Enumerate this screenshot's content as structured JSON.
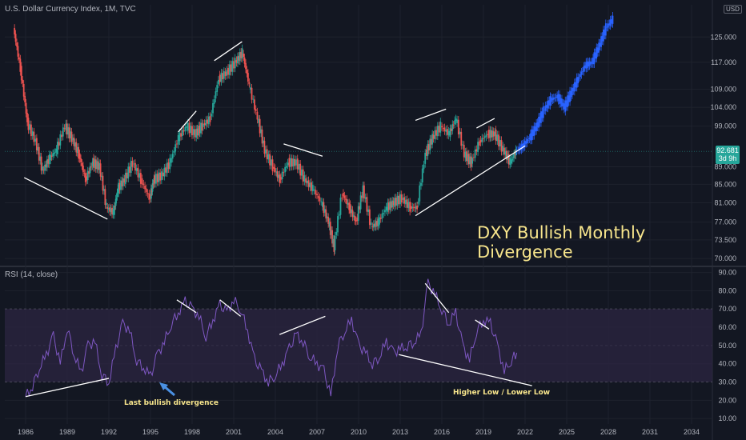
{
  "header": {
    "symbol_label": "U.S. Dollar Currency Index, 1M, TVC",
    "currency": "USD",
    "rsi_label": "RSI (14, close)"
  },
  "annotations": {
    "title": "DXY Bullish Monthly Divergence",
    "last_divergence": "Last bullish divergence",
    "higher_low": "Higher Low / Lower Low"
  },
  "price_tag": {
    "value": "92.681",
    "countdown": "3d 9h"
  },
  "colors": {
    "background": "#131722",
    "up_candle": "#26a69a",
    "down_candle": "#ef5350",
    "projection": "#2962ff",
    "rsi_line": "#7e57c2",
    "rsi_band": "#2a2440",
    "trendline": "#ffffff",
    "annotation_text": "#f7e58c",
    "grid": "#1e222d"
  },
  "chart_data": [
    {
      "type": "line",
      "title": "U.S. Dollar Currency Index, 1M, TVC",
      "x_ticks": [
        "1986",
        "1989",
        "1992",
        "1995",
        "1998",
        "2001",
        "2004",
        "2007",
        "2010",
        "2013",
        "2016",
        "2019",
        "2022",
        "2025",
        "2028",
        "2031",
        "2034"
      ],
      "y_ticks": [
        70.0,
        73.5,
        77.0,
        81.0,
        85.0,
        89.0,
        92.681,
        99.0,
        104.0,
        109.0,
        117.0,
        125.0
      ],
      "y_tick_labels": [
        "70.000",
        "73.500",
        "77.000",
        "81.000",
        "85.000",
        "89.000",
        "92.681",
        "99.000",
        "104.000",
        "109.000",
        "117.000",
        "125.000"
      ],
      "ylim": [
        69,
        136
      ],
      "xlim": [
        1984.5,
        2035.5
      ],
      "log_scale": true,
      "series": [
        {
          "x": [
            1985.2,
            1985.7,
            1986.2,
            1986.8,
            1987.3,
            1987.8,
            1988.3,
            1988.9,
            1989.4,
            1989.9,
            1990.4,
            1990.9,
            1991.4,
            1991.9,
            1992.4,
            1992.7,
            1993.2,
            1993.8,
            1994.4,
            1995.0,
            1995.3,
            1995.9,
            1996.5,
            1997.1,
            1997.7,
            1998.3,
            1998.8,
            1999.4,
            2000.0,
            2000.6,
            2001.2,
            2001.7,
            2002.2,
            2002.8,
            2003.3,
            2003.9,
            2004.4,
            2005.0,
            2005.6,
            2006.2,
            2006.8,
            2007.4,
            2007.9,
            2008.3,
            2008.9,
            2009.4,
            2009.9,
            2010.4,
            2011.0,
            2011.5,
            2012.1,
            2012.6,
            2013.2,
            2013.8,
            2014.3,
            2014.9,
            2015.4,
            2016.0,
            2016.6,
            2017.1,
            2017.7,
            2018.2,
            2018.8,
            2019.4,
            2019.9,
            2020.5,
            2021.0,
            2021.4
          ],
          "values": [
            128,
            115,
            100,
            95,
            88,
            91,
            93,
            99,
            96,
            92,
            86,
            90,
            89,
            80,
            79,
            84,
            86,
            90,
            86,
            82,
            86,
            87,
            90,
            96,
            99,
            97,
            99,
            101,
            112,
            114,
            117,
            120,
            110,
            101,
            93,
            89,
            86,
            90,
            90,
            86,
            84,
            81,
            77,
            72,
            83,
            80,
            77,
            84,
            76,
            77,
            80,
            81,
            82,
            80,
            80,
            92,
            96,
            99,
            97,
            101,
            92,
            90,
            95,
            97,
            97,
            93,
            90,
            92.681
          ]
        },
        {
          "name": "",
          "x": [
            2021.4,
            2021.9,
            2022.4,
            2022.9,
            2023.4,
            2023.9,
            2024.4,
            2024.9,
            2025.4,
            2025.9,
            2026.4,
            2026.9,
            2027.4,
            2027.9,
            2028.4
          ],
          "values": [
            92.681,
            94,
            96,
            99,
            103,
            106,
            107,
            104,
            108,
            112,
            116,
            117,
            122,
            128,
            131
          ]
        }
      ],
      "trendlines_price": [
        {
          "x1": 1985.9,
          "y1": 86.5,
          "x2": 1991.9,
          "y2": 77.6
        },
        {
          "x1": 1997.0,
          "y1": 97.5,
          "x2": 1998.3,
          "y2": 103.0
        },
        {
          "x1": 1999.6,
          "y1": 117.5,
          "x2": 2001.6,
          "y2": 123.5
        },
        {
          "x1": 2004.6,
          "y1": 94.5,
          "x2": 2007.4,
          "y2": 91.5
        },
        {
          "x1": 2014.1,
          "y1": 78.3,
          "x2": 2022.0,
          "y2": 94.0
        },
        {
          "x1": 2014.1,
          "y1": 100.5,
          "x2": 2016.3,
          "y2": 103.5
        },
        {
          "x1": 2018.5,
          "y1": 98.5,
          "x2": 2019.8,
          "y2": 101.0
        }
      ]
    },
    {
      "type": "line",
      "title": "RSI (14, close)",
      "x_ticks": [
        "1986",
        "1989",
        "1992",
        "1995",
        "1998",
        "2001",
        "2004",
        "2007",
        "2010",
        "2013",
        "2016",
        "2019",
        "2022",
        "2025",
        "2028",
        "2031",
        "2034"
      ],
      "y_ticks": [
        10,
        20,
        30,
        40,
        50,
        60,
        70,
        80,
        90
      ],
      "y_tick_labels": [
        "10.00",
        "20.00",
        "30.00",
        "40.00",
        "50.00",
        "60.00",
        "70.00",
        "80.00",
        "90.00"
      ],
      "ylim": [
        7,
        92
      ],
      "band": [
        30,
        70
      ],
      "series": [
        {
          "name": "",
          "x": [
            1986.0,
            1986.5,
            1987.0,
            1987.5,
            1988.0,
            1988.5,
            1989.0,
            1989.5,
            1990.0,
            1990.5,
            1991.0,
            1991.5,
            1992.0,
            1992.5,
            1993.0,
            1993.5,
            1994.0,
            1994.5,
            1995.0,
            1995.5,
            1996.0,
            1996.5,
            1997.0,
            1997.5,
            1998.0,
            1998.5,
            1999.0,
            1999.5,
            2000.0,
            2000.5,
            2001.0,
            2001.5,
            2002.0,
            2002.5,
            2003.0,
            2003.5,
            2004.0,
            2004.5,
            2005.0,
            2005.5,
            2006.0,
            2006.5,
            2007.0,
            2007.5,
            2008.0,
            2008.5,
            2009.0,
            2009.5,
            2010.0,
            2010.5,
            2011.0,
            2011.5,
            2012.0,
            2012.5,
            2013.0,
            2013.5,
            2014.0,
            2014.5,
            2015.0,
            2015.5,
            2016.0,
            2016.5,
            2017.0,
            2017.5,
            2018.0,
            2018.5,
            2019.0,
            2019.5,
            2020.0,
            2020.5,
            2021.0,
            2021.4
          ],
          "values": [
            22,
            28,
            38,
            45,
            55,
            40,
            60,
            45,
            35,
            50,
            52,
            34,
            30,
            48,
            62,
            58,
            42,
            38,
            33,
            45,
            52,
            62,
            68,
            74,
            70,
            66,
            55,
            64,
            72,
            68,
            75,
            70,
            58,
            42,
            36,
            30,
            34,
            40,
            48,
            56,
            52,
            44,
            40,
            36,
            22,
            50,
            58,
            64,
            50,
            46,
            40,
            44,
            52,
            46,
            48,
            50,
            52,
            56,
            84,
            78,
            70,
            62,
            68,
            50,
            42,
            58,
            64,
            62,
            50,
            36,
            42,
            46
          ]
        }
      ],
      "trendlines_rsi": [
        {
          "x1": 1986.0,
          "y1": 22,
          "x2": 1992.0,
          "y2": 32
        },
        {
          "x1": 1996.9,
          "y1": 75,
          "x2": 1998.3,
          "y2": 68
        },
        {
          "x1": 2000.0,
          "y1": 75,
          "x2": 2001.5,
          "y2": 66
        },
        {
          "x1": 2004.3,
          "y1": 56,
          "x2": 2007.6,
          "y2": 66
        },
        {
          "x1": 2014.8,
          "y1": 84,
          "x2": 2016.5,
          "y2": 68
        },
        {
          "x1": 2018.4,
          "y1": 64,
          "x2": 2019.4,
          "y2": 59
        },
        {
          "x1": 2012.9,
          "y1": 45,
          "x2": 2022.5,
          "y2": 28
        }
      ]
    }
  ]
}
